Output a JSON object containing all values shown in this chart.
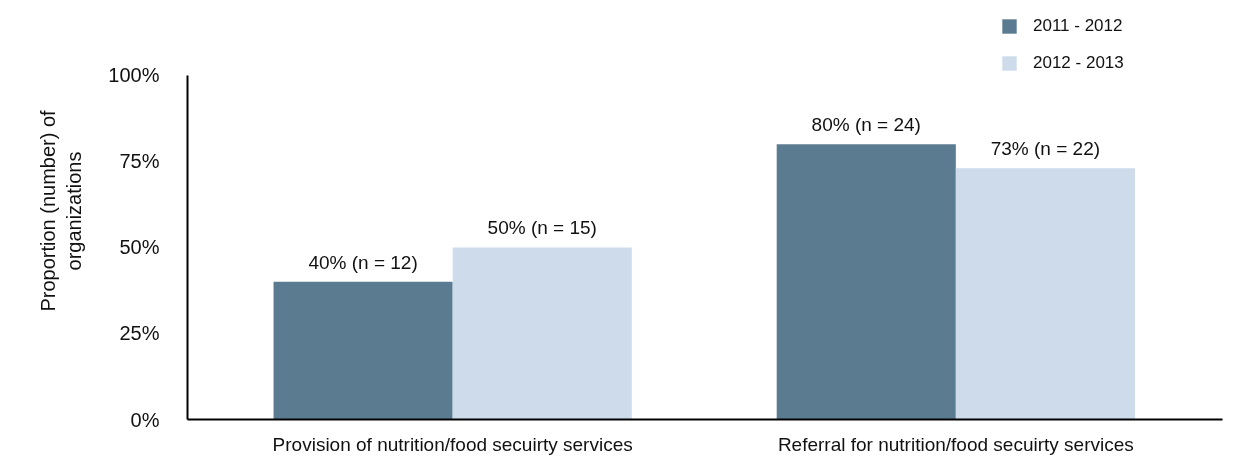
{
  "chart_data": {
    "type": "bar",
    "ylabel": "Proportion (number) of organizations",
    "categories": [
      "Provision of nutrition/food secuirty services",
      "Referral for nutrition/food secuirty services"
    ],
    "series": [
      {
        "name": "2011 - 2012",
        "color": "#5b7b91",
        "values": [
          40,
          80
        ],
        "value_labels": [
          "40% (n = 12)",
          "80% (n = 24)"
        ]
      },
      {
        "name": "2012 - 2013",
        "color": "#cddbea",
        "values": [
          50,
          73
        ],
        "value_labels": [
          "50% (n = 15)",
          "73% (n = 22)"
        ]
      }
    ],
    "ylim": [
      0,
      100
    ],
    "yticks": [
      {
        "value": 0,
        "label": "0%"
      },
      {
        "value": 25,
        "label": "25%"
      },
      {
        "value": 50,
        "label": "50%"
      },
      {
        "value": 75,
        "label": "75%"
      },
      {
        "value": 100,
        "label": "100%"
      }
    ],
    "legend": "top right"
  }
}
